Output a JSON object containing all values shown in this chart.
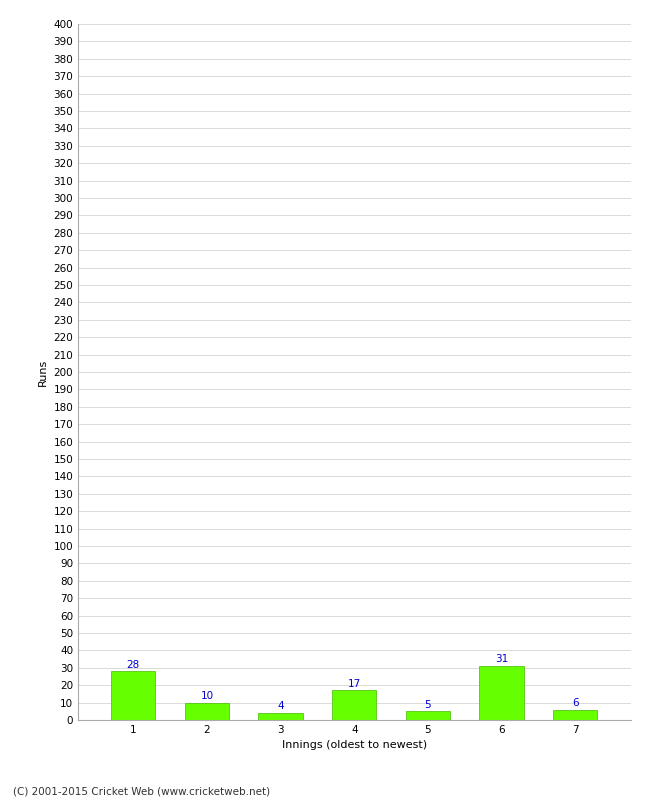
{
  "categories": [
    "1",
    "2",
    "3",
    "4",
    "5",
    "6",
    "7"
  ],
  "values": [
    28,
    10,
    4,
    17,
    5,
    31,
    6
  ],
  "bar_color": "#66ff00",
  "bar_edge_color": "#44bb00",
  "value_color": "#0000cc",
  "ylabel": "Runs",
  "xlabel": "Innings (oldest to newest)",
  "footer": "(C) 2001-2015 Cricket Web (www.cricketweb.net)",
  "ylim": [
    0,
    400
  ],
  "ytick_step": 10,
  "background_color": "#ffffff",
  "grid_color": "#cccccc",
  "value_fontsize": 7.5,
  "axis_fontsize": 7.5,
  "label_fontsize": 8,
  "footer_fontsize": 7.5
}
